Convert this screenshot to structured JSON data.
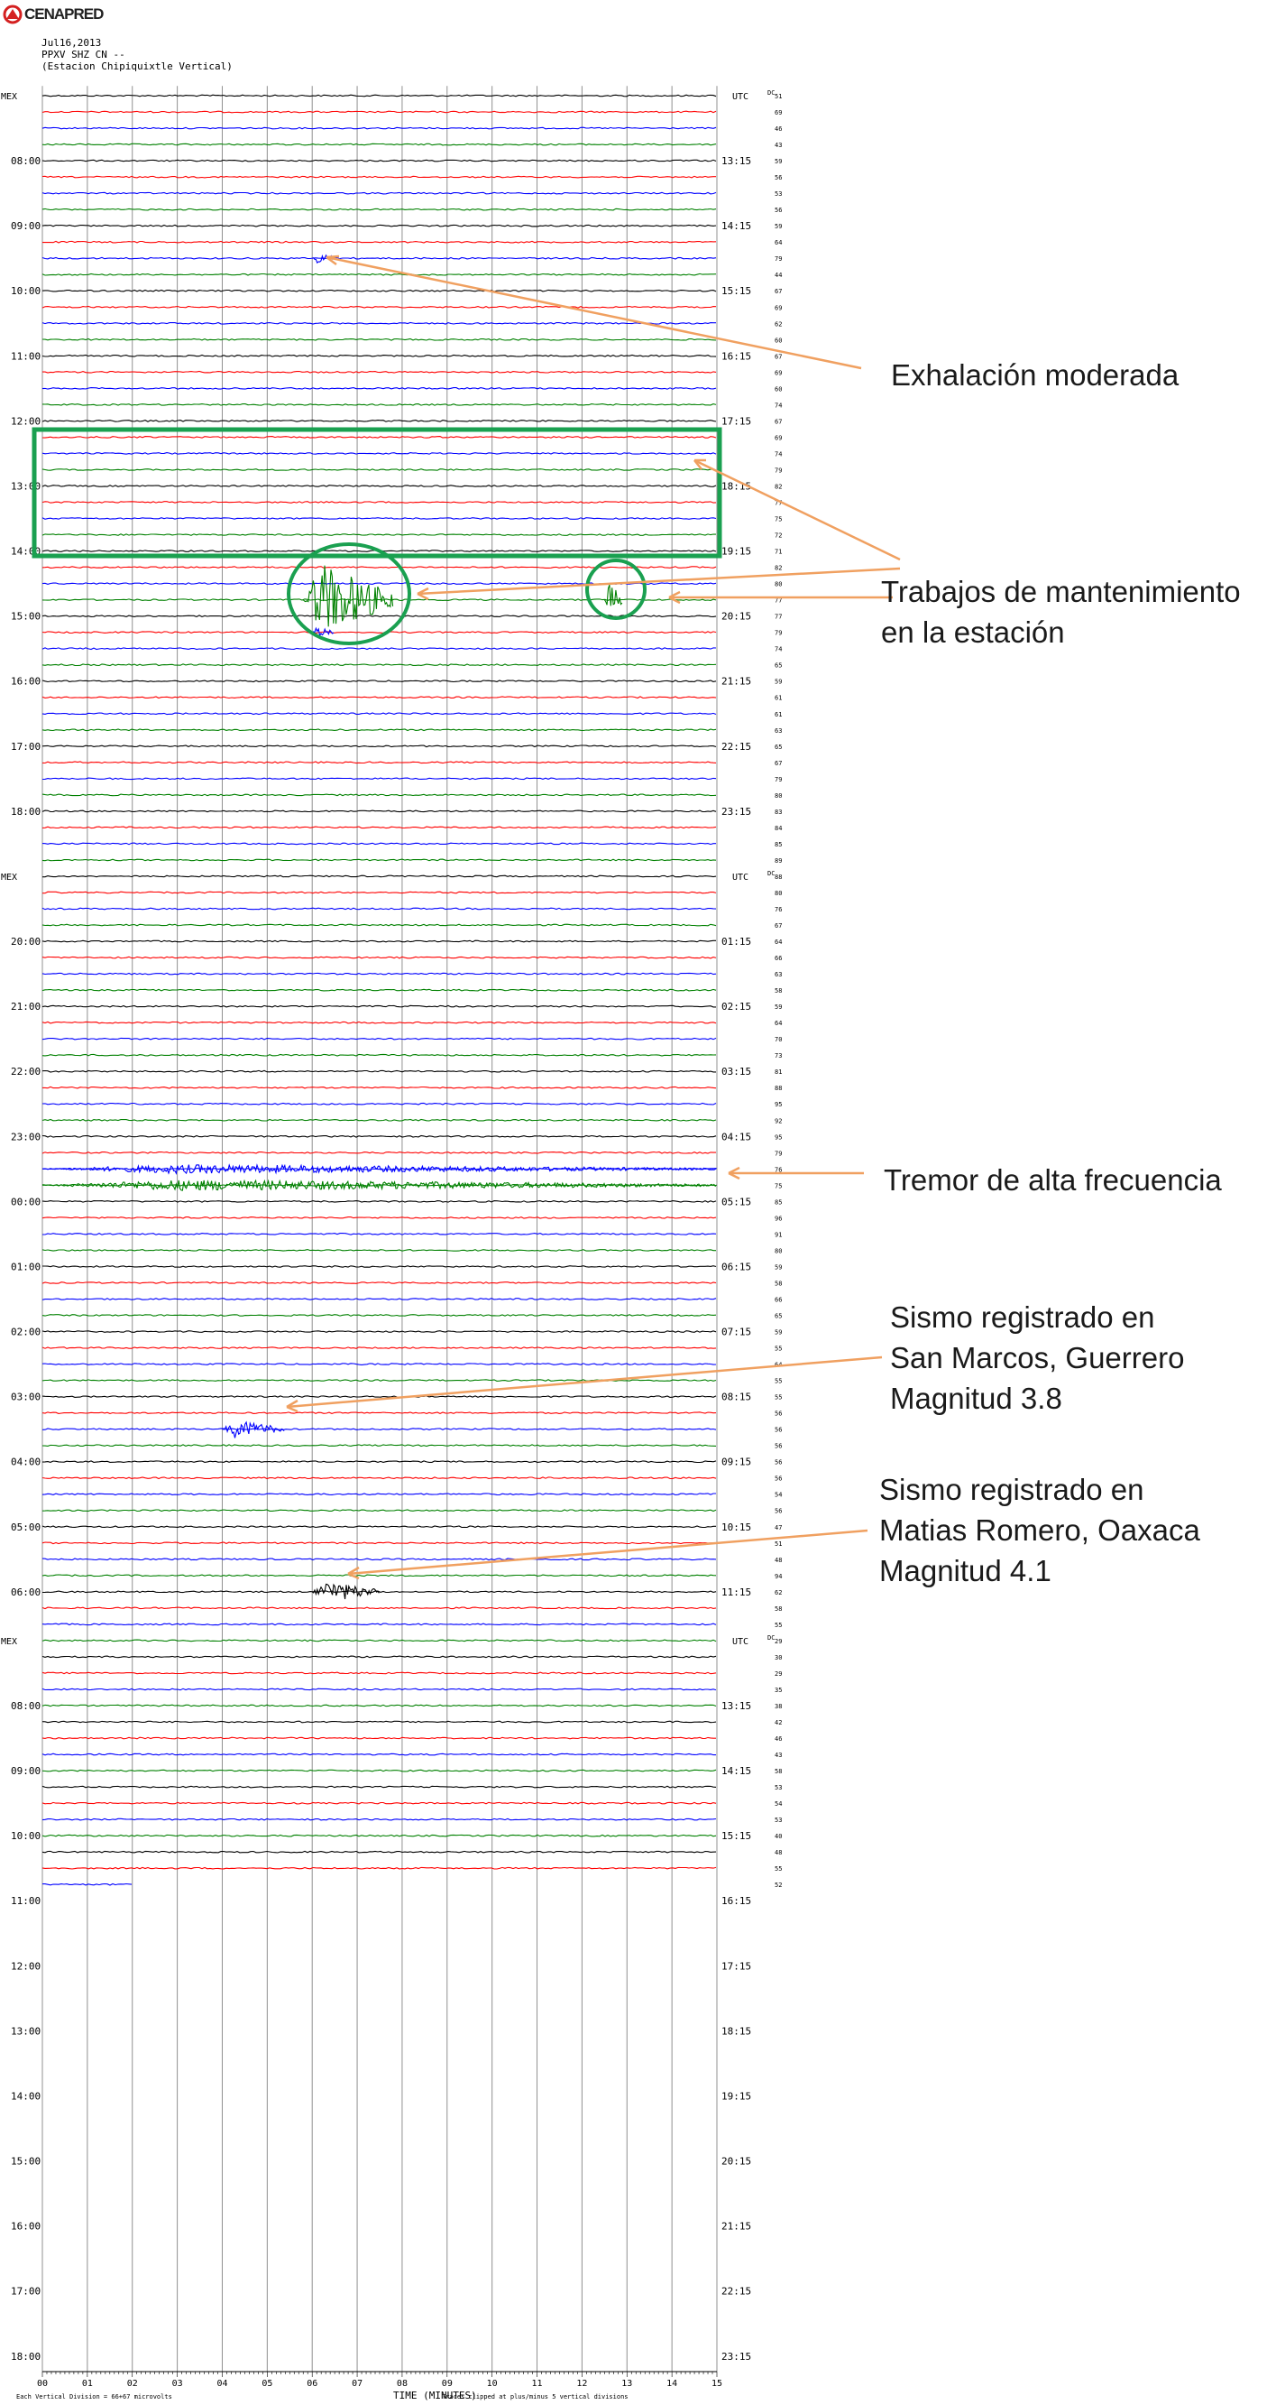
{
  "logo": {
    "text": "CENAPRED"
  },
  "header": {
    "date": "Jul16,2013",
    "channel": "PPXV SHZ CN --",
    "station": "(Estacion Chipiquixtle Vertical)"
  },
  "timezone_left": "MEX",
  "timezone_right": "UTC",
  "dc_label": "DC",
  "colors": {
    "trace_cycle": [
      "#000000",
      "#ff0000",
      "#0000ff",
      "#008000"
    ],
    "annotation_arrow": "#f0a060",
    "highlight_box": "#1aa050"
  },
  "chart_data": {
    "type": "helicorder",
    "title": "",
    "xlabel": "TIME (MINUTES)",
    "x_ticks": [
      "00",
      "01",
      "02",
      "03",
      "04",
      "05",
      "06",
      "07",
      "08",
      "09",
      "10",
      "11",
      "12",
      "13",
      "14",
      "15"
    ],
    "footer_left": "Each Vertical Division = 66+67 microvolts",
    "footer_right": "Traces clipped at plus/minus 5 vertical divisions",
    "sections": [
      {
        "start_row": 0,
        "rows": 48,
        "left_labels": [
          {
            "row": 4,
            "text": "08:00"
          },
          {
            "row": 8,
            "text": "09:00"
          },
          {
            "row": 12,
            "text": "10:00"
          },
          {
            "row": 16,
            "text": "11:00"
          },
          {
            "row": 20,
            "text": "12:00"
          },
          {
            "row": 24,
            "text": "13:00"
          },
          {
            "row": 28,
            "text": "14:00"
          },
          {
            "row": 32,
            "text": "15:00"
          },
          {
            "row": 36,
            "text": "16:00"
          },
          {
            "row": 40,
            "text": "17:00"
          },
          {
            "row": 44,
            "text": "18:00"
          }
        ],
        "right_labels": [
          {
            "row": 4,
            "text": "13:15"
          },
          {
            "row": 8,
            "text": "14:15"
          },
          {
            "row": 12,
            "text": "15:15"
          },
          {
            "row": 16,
            "text": "16:15"
          },
          {
            "row": 20,
            "text": "17:15"
          },
          {
            "row": 24,
            "text": "18:15"
          },
          {
            "row": 28,
            "text": "19:15"
          },
          {
            "row": 32,
            "text": "20:15"
          },
          {
            "row": 36,
            "text": "21:15"
          },
          {
            "row": 40,
            "text": "22:15"
          },
          {
            "row": 44,
            "text": "23:15"
          }
        ],
        "dc_values": [
          "51",
          "69",
          "46",
          "43",
          "59",
          "56",
          "53",
          "56",
          "59",
          "64",
          "79",
          "44",
          "67",
          "69",
          "62",
          "60",
          "67",
          "69",
          "60",
          "74",
          "67",
          "69",
          "74",
          "79",
          "82",
          "77",
          "75",
          "72",
          "71",
          "82",
          "80",
          "77",
          "77",
          "79",
          "74",
          "65",
          "59",
          "61",
          "61",
          "63",
          "65",
          "67",
          "79",
          "80",
          "83",
          "84",
          "85",
          "89"
        ]
      },
      {
        "start_row": 48,
        "rows": 47,
        "left_labels": [
          {
            "row": 52,
            "text": "20:00"
          },
          {
            "row": 56,
            "text": "21:00"
          },
          {
            "row": 60,
            "text": "22:00"
          },
          {
            "row": 64,
            "text": "23:00"
          },
          {
            "row": 68,
            "text": "00:00"
          },
          {
            "row": 72,
            "text": "01:00"
          },
          {
            "row": 76,
            "text": "02:00"
          },
          {
            "row": 80,
            "text": "03:00"
          },
          {
            "row": 84,
            "text": "04:00"
          },
          {
            "row": 88,
            "text": "05:00"
          },
          {
            "row": 92,
            "text": "06:00"
          }
        ],
        "right_labels": [
          {
            "row": 52,
            "text": "01:15"
          },
          {
            "row": 56,
            "text": "02:15"
          },
          {
            "row": 60,
            "text": "03:15"
          },
          {
            "row": 64,
            "text": "04:15"
          },
          {
            "row": 68,
            "text": "05:15"
          },
          {
            "row": 72,
            "text": "06:15"
          },
          {
            "row": 76,
            "text": "07:15"
          },
          {
            "row": 80,
            "text": "08:15"
          },
          {
            "row": 84,
            "text": "09:15"
          },
          {
            "row": 88,
            "text": "10:15"
          },
          {
            "row": 92,
            "text": "11:15"
          }
        ],
        "dc_values": [
          "88",
          "80",
          "76",
          "67",
          "64",
          "66",
          "63",
          "58",
          "59",
          "64",
          "70",
          "73",
          "81",
          "88",
          "95",
          "92",
          "95",
          "79",
          "76",
          "75",
          "85",
          "96",
          "91",
          "80",
          "59",
          "58",
          "66",
          "65",
          "59",
          "55",
          "64",
          "55",
          "55",
          "56",
          "56",
          "56",
          "56",
          "56",
          "54",
          "56",
          "47",
          "51",
          "48",
          "94",
          "62",
          "58",
          "55"
        ]
      },
      {
        "start_row": 95,
        "rows": 47,
        "left_labels": [
          {
            "row": 99,
            "text": "08:00"
          },
          {
            "row": 103,
            "text": "09:00"
          },
          {
            "row": 107,
            "text": "10:00"
          },
          {
            "row": 111,
            "text": "11:00"
          },
          {
            "row": 115,
            "text": "12:00"
          },
          {
            "row": 119,
            "text": "13:00"
          },
          {
            "row": 123,
            "text": "14:00"
          },
          {
            "row": 127,
            "text": "15:00"
          },
          {
            "row": 131,
            "text": "16:00"
          },
          {
            "row": 135,
            "text": "17:00"
          },
          {
            "row": 139,
            "text": "18:00"
          }
        ],
        "right_labels": [
          {
            "row": 99,
            "text": "13:15"
          },
          {
            "row": 103,
            "text": "14:15"
          },
          {
            "row": 107,
            "text": "15:15"
          },
          {
            "row": 111,
            "text": "16:15"
          },
          {
            "row": 115,
            "text": "17:15"
          },
          {
            "row": 119,
            "text": "18:15"
          },
          {
            "row": 123,
            "text": "19:15"
          },
          {
            "row": 127,
            "text": "20:15"
          },
          {
            "row": 131,
            "text": "21:15"
          },
          {
            "row": 135,
            "text": "22:15"
          },
          {
            "row": 139,
            "text": "23:15"
          }
        ],
        "dc_values": [
          "29",
          "30",
          "29",
          "35",
          "38",
          "42",
          "46",
          "43",
          "58",
          "53",
          "54",
          "53",
          "40",
          "48",
          "55",
          "52"
        ],
        "recorded_rows": 16,
        "last_row_end_minute": 2
      }
    ],
    "events": [
      {
        "row": 10,
        "row_color": "blue",
        "start_min": 6.0,
        "end_min": 6.6,
        "amp": 6
      },
      {
        "row": 33,
        "row_color": "blue",
        "start_min": 6.0,
        "end_min": 6.5,
        "amp": 6
      },
      {
        "row": 31,
        "row_color": "green",
        "start_min": 5.8,
        "end_min": 7.8,
        "amp": 40
      },
      {
        "row": 31,
        "row_color": "green",
        "start_min": 12.5,
        "end_min": 12.9,
        "amp": 20
      },
      {
        "row": 82,
        "row_color": "blue",
        "start_min": 4.0,
        "end_min": 5.4,
        "amp": 10
      },
      {
        "row": 92,
        "row_color": "black",
        "start_min": 6.0,
        "end_min": 7.5,
        "amp": 12
      },
      {
        "row": 67,
        "row_color": "green",
        "start_min": 0,
        "end_min": 15,
        "amp": 6
      },
      {
        "row": 66,
        "row_color": "blue",
        "start_min": 0,
        "end_min": 15,
        "amp": 5
      }
    ],
    "annotations": [
      {
        "text": "Exhalación moderada"
      },
      {
        "text": "Trabajos de mantenimiento\nen la estación"
      },
      {
        "text": "Tremor de alta frecuencia"
      },
      {
        "text": "Sismo registrado en\nSan Marcos, Guerrero\nMagnitud 3.8"
      },
      {
        "text": "Sismo registrado en\nMatias Romero, Oaxaca\nMagnitud 4.1"
      }
    ]
  }
}
